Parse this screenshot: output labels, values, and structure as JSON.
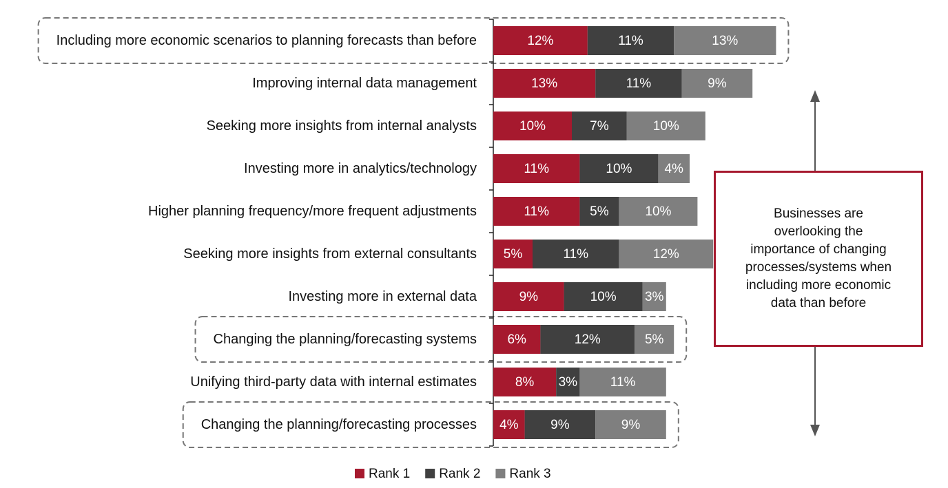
{
  "chart_data": {
    "type": "stacked-bar-horizontal",
    "categories": [
      "Including more economic scenarios to planning forecasts than before",
      "Improving internal data management",
      "Seeking more insights from internal analysts",
      "Investing more in analytics/technology",
      "Higher planning frequency/more frequent adjustments",
      "Seeking more insights from external consultants",
      "Investing more in external data",
      "Changing the planning/forecasting systems",
      "Unifying third-party data with internal estimates",
      "Changing the planning/forecasting processes"
    ],
    "series": [
      {
        "name": "Rank 1",
        "color": "#a6192e",
        "values": [
          12,
          13,
          10,
          11,
          11,
          5,
          9,
          6,
          8,
          4
        ],
        "value_labels": [
          "12%",
          "13%",
          "10%",
          "11%",
          "11%",
          "5%",
          "9%",
          "6%",
          "8%",
          "4%"
        ]
      },
      {
        "name": "Rank 2",
        "color": "#404040",
        "values": [
          11,
          11,
          7,
          10,
          5,
          11,
          10,
          12,
          3,
          9
        ],
        "value_labels": [
          "11%",
          "11%",
          "7%",
          "10%",
          "5%",
          "11%",
          "10%",
          "12%",
          "3%",
          "9%"
        ]
      },
      {
        "name": "Rank 3",
        "color": "#7f7f7f",
        "values": [
          13,
          9,
          10,
          4,
          10,
          12,
          3,
          5,
          11,
          9
        ],
        "value_labels": [
          "13%",
          "9%",
          "10%",
          "4%",
          "10%",
          "12%",
          "3%",
          "5%",
          "11%",
          "9%"
        ]
      }
    ],
    "highlight": [
      0,
      7,
      9
    ],
    "annotation": [
      "Businesses are",
      "overlooking the",
      "importance of changing",
      "processes/systems when",
      "including more economic",
      "data than before"
    ],
    "legend": "bottom"
  }
}
